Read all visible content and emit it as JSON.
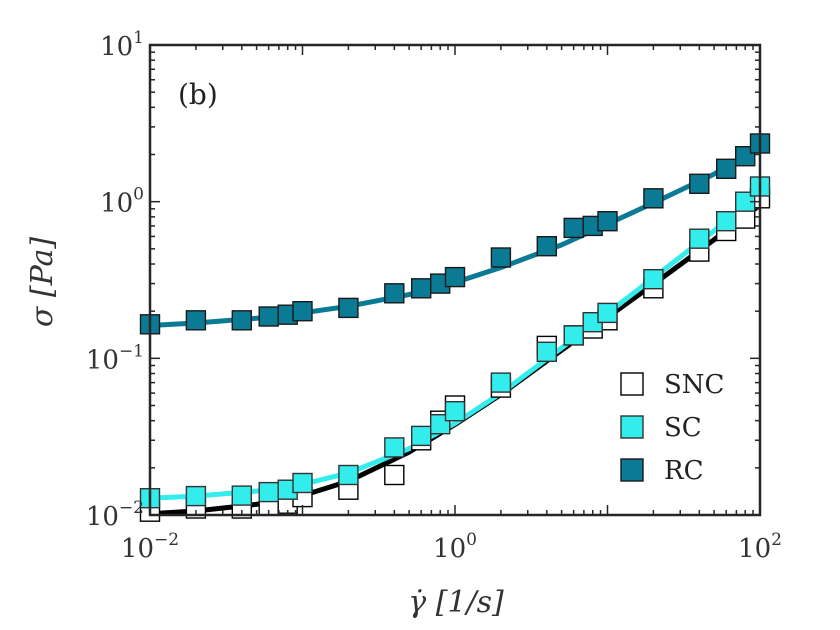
{
  "chart_data": {
    "type": "scatter",
    "panel_label": "(b)",
    "xlabel": "γ̇ [1/s]",
    "ylabel": "σ [Pa]",
    "xscale": "log",
    "yscale": "log",
    "xlim": [
      0.01,
      100
    ],
    "ylim": [
      0.01,
      10
    ],
    "xticks": [
      {
        "value": 0.01,
        "base": "10",
        "exp": "−2"
      },
      {
        "value": 1,
        "base": "10",
        "exp": "0"
      },
      {
        "value": 100,
        "base": "10",
        "exp": "2"
      }
    ],
    "yticks": [
      {
        "value": 0.01,
        "base": "10",
        "exp": "−2"
      },
      {
        "value": 0.1,
        "base": "10",
        "exp": "−1"
      },
      {
        "value": 1,
        "base": "10",
        "exp": "0"
      },
      {
        "value": 10,
        "base": "10",
        "exp": "1"
      }
    ],
    "legend_position": "bottom-right",
    "series": [
      {
        "name": "SNC",
        "marker": "square-open",
        "face_color": "#ffffff",
        "edge_color": "#000000",
        "fit_color": "#000000",
        "x": [
          0.01,
          0.02,
          0.04,
          0.06,
          0.08,
          0.1,
          0.2,
          0.4,
          0.6,
          0.8,
          1.0,
          2.0,
          4.0,
          6.0,
          8.0,
          10.0,
          20.0,
          40.0,
          60.0,
          80.0,
          100.0
        ],
        "y": [
          0.0105,
          0.011,
          0.011,
          0.0115,
          0.0118,
          0.013,
          0.0145,
          0.018,
          0.03,
          0.04,
          0.05,
          0.065,
          0.12,
          0.14,
          0.155,
          0.175,
          0.28,
          0.48,
          0.65,
          0.78,
          1.05
        ],
        "fit_x": [
          0.01,
          0.02,
          0.05,
          0.1,
          0.2,
          0.5,
          1,
          2,
          5,
          10,
          20,
          50,
          100
        ],
        "fit_y": [
          0.0102,
          0.0106,
          0.0117,
          0.0133,
          0.0164,
          0.0252,
          0.0378,
          0.0588,
          0.1127,
          0.1825,
          0.297,
          0.5714,
          0.9514
        ]
      },
      {
        "name": "SC",
        "marker": "square-filled",
        "face_color": "#33ecec",
        "edge_color": "#333333",
        "fit_color": "#33ecec",
        "x": [
          0.01,
          0.02,
          0.04,
          0.06,
          0.08,
          0.1,
          0.2,
          0.4,
          0.6,
          0.8,
          1.0,
          2.0,
          4.0,
          6.0,
          8.0,
          10.0,
          20.0,
          40.0,
          60.0,
          80.0,
          100.0
        ],
        "y": [
          0.0128,
          0.0132,
          0.0133,
          0.014,
          0.0145,
          0.016,
          0.018,
          0.027,
          0.032,
          0.038,
          0.046,
          0.07,
          0.11,
          0.14,
          0.17,
          0.195,
          0.32,
          0.58,
          0.75,
          1.0,
          1.25
        ],
        "fit_x": [
          0.01,
          0.02,
          0.05,
          0.1,
          0.2,
          0.5,
          1,
          2,
          5,
          10,
          20,
          50,
          100
        ],
        "fit_y": [
          0.0128,
          0.0132,
          0.0142,
          0.0157,
          0.0185,
          0.0265,
          0.0385,
          0.0598,
          0.1166,
          0.1941,
          0.3261,
          0.6527,
          1.1127
        ]
      },
      {
        "name": "RC",
        "marker": "square-filled",
        "face_color": "#0b7a94",
        "edge_color": "#1a1a1a",
        "fit_color": "#0b7a94",
        "x": [
          0.01,
          0.02,
          0.04,
          0.06,
          0.08,
          0.1,
          0.2,
          0.4,
          0.6,
          0.8,
          1.0,
          2.0,
          4.0,
          6.0,
          8.0,
          10.0,
          20.0,
          40.0,
          60.0,
          80.0,
          100.0
        ],
        "y": [
          0.165,
          0.175,
          0.175,
          0.185,
          0.19,
          0.2,
          0.21,
          0.26,
          0.28,
          0.3,
          0.33,
          0.44,
          0.52,
          0.68,
          0.7,
          0.75,
          1.05,
          1.3,
          1.62,
          1.95,
          2.35
        ],
        "fit_x": [
          0.01,
          0.02,
          0.05,
          0.1,
          0.2,
          0.5,
          1,
          2,
          5,
          10,
          20,
          50,
          100
        ],
        "fit_y": [
          0.162,
          0.168,
          0.18,
          0.195,
          0.215,
          0.255,
          0.305,
          0.38,
          0.53,
          0.72,
          0.98,
          1.5,
          2.25
        ]
      }
    ]
  }
}
